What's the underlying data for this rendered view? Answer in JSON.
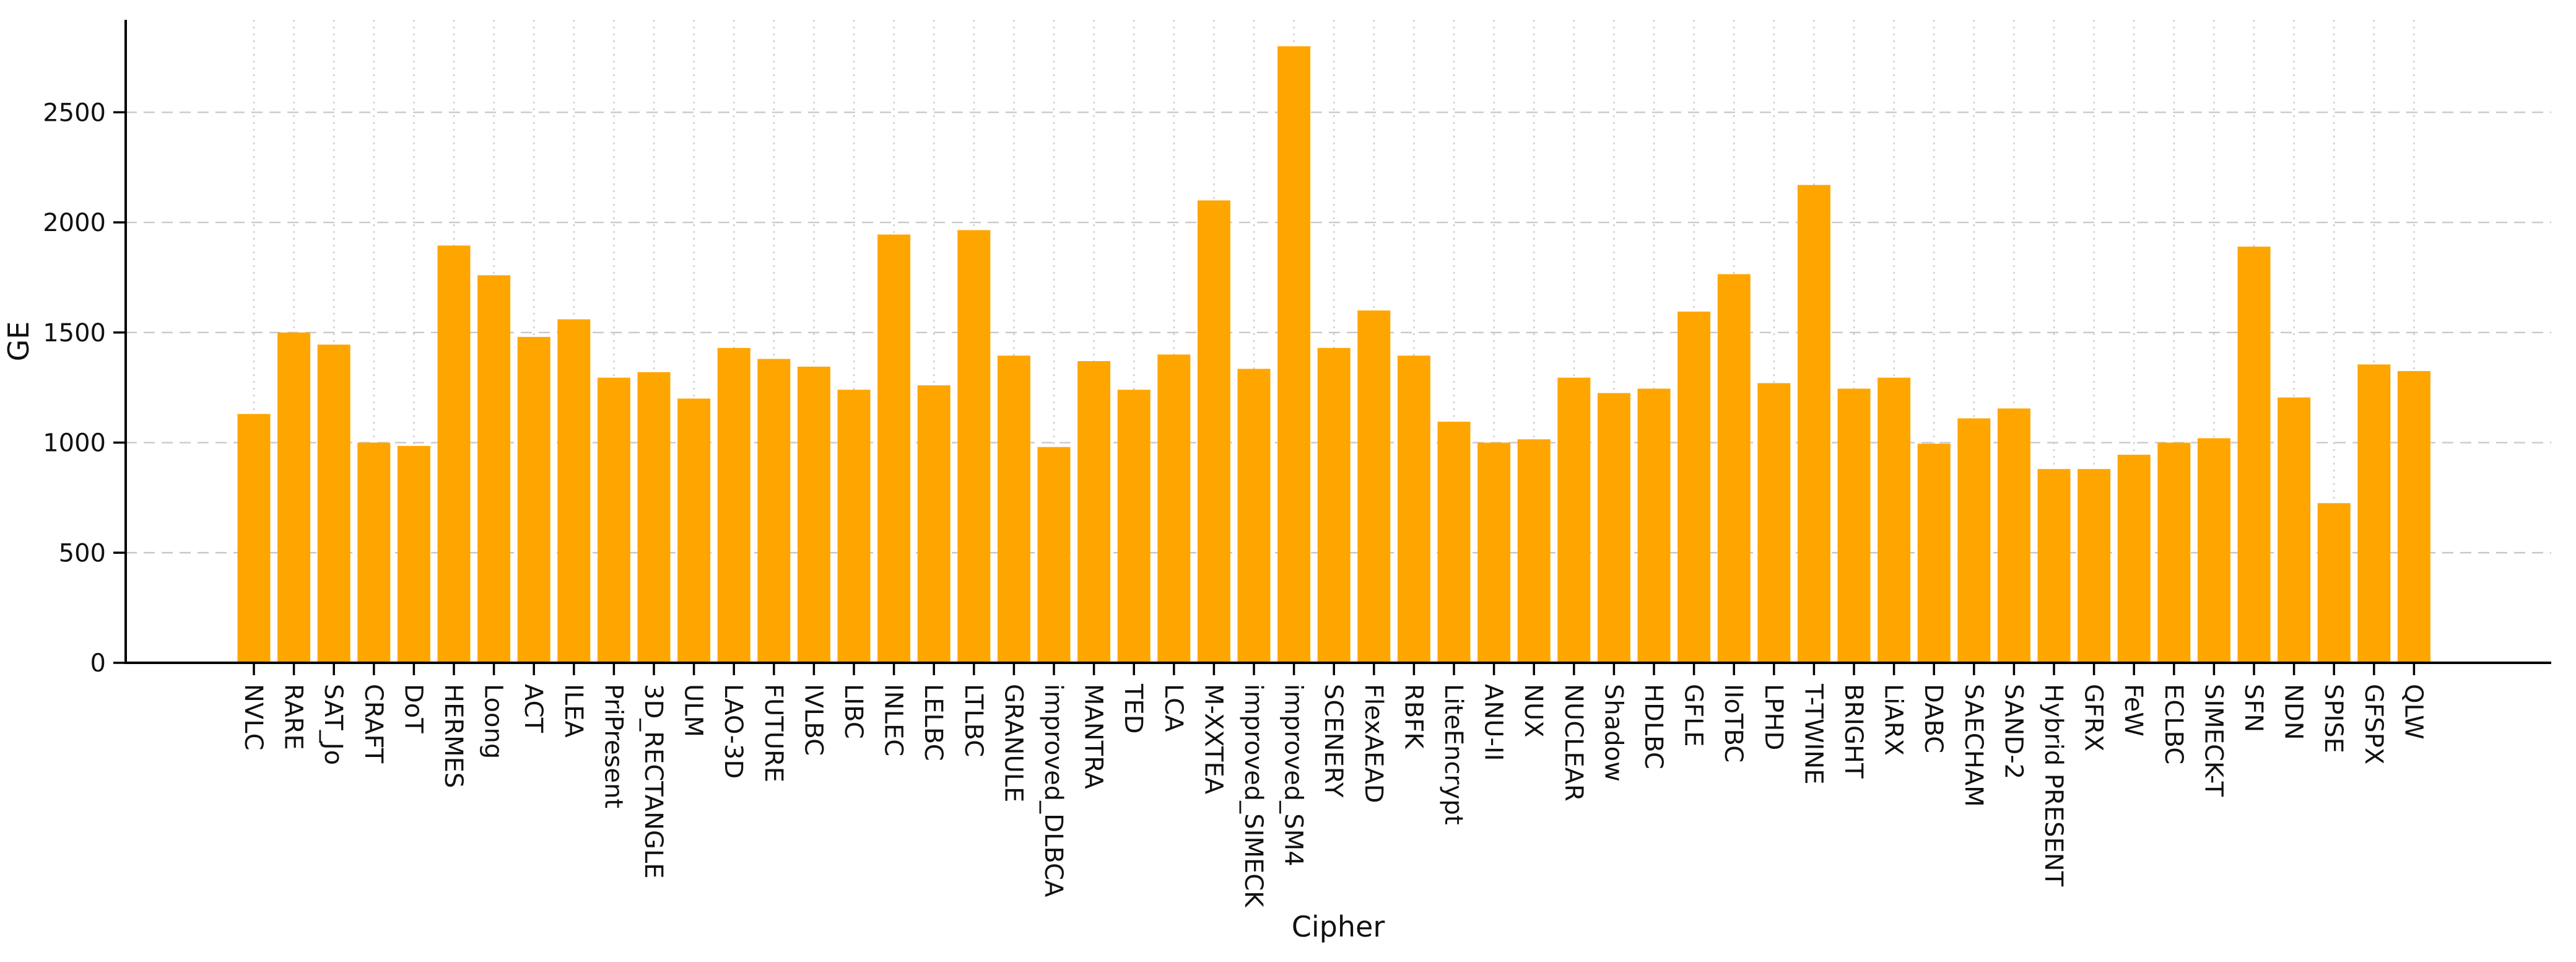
{
  "figure": {
    "background": "#ffffff"
  },
  "chart_data": {
    "type": "bar",
    "title": "",
    "xlabel": "Cipher",
    "ylabel": "GE",
    "categories": [
      "NVLC",
      "RARE",
      "SAT_Jo",
      "CRAFT",
      "DoT",
      "HERMES",
      "Loong",
      "ACT",
      "ILEA",
      "PriPresent",
      "3D_RECTANGLE",
      "ULM",
      "LAO-3D",
      "FUTURE",
      "IVLBC",
      "LIBC",
      "INLEC",
      "LELBC",
      "LTLBC",
      "GRANULE",
      "improved_DLBCA",
      "MANTRA",
      "TED",
      "LCA",
      "M-XXTEA",
      "improved_SIMECK",
      "improved_SM4",
      "SCENERY",
      "FlexAEAD",
      "RBFK",
      "LiteEncrypt",
      "ANU-II",
      "NUX",
      "NUCLEAR",
      "Shadow",
      "HDLBC",
      "GFLE",
      "IIoTBC",
      "LPHD",
      "T-TWINE",
      "BRIGHT",
      "LiARX",
      "DABC",
      "SAECHAM",
      "SAND-2",
      "Hybrid PRESENT",
      "GFRX",
      "FeW",
      "ECLBC",
      "SIMECK-T",
      "SFN",
      "NDN",
      "SPISE",
      "GFSPX",
      "QLW"
    ],
    "values": [
      1130,
      1500,
      1445,
      1000,
      985,
      1895,
      1760,
      1480,
      1560,
      1295,
      1320,
      1200,
      1430,
      1380,
      1345,
      1240,
      1945,
      1260,
      1965,
      1395,
      980,
      1370,
      1240,
      1400,
      2100,
      1335,
      2800,
      1430,
      1600,
      1395,
      1095,
      1000,
      1015,
      1295,
      1225,
      1245,
      1595,
      1765,
      1270,
      2170,
      1245,
      1295,
      995,
      1110,
      1155,
      880,
      880,
      945,
      1000,
      1020,
      1890,
      1205,
      725,
      1355,
      1325
    ],
    "yticks": [
      0,
      500,
      1000,
      1500,
      2000,
      2500
    ],
    "ylim": [
      0,
      2920
    ],
    "grid": true,
    "legend_position": "none",
    "bar_color": "#FFA500",
    "grid_color": "#c9c9c9",
    "axis_color": "#000000",
    "text_color": "#111111"
  }
}
